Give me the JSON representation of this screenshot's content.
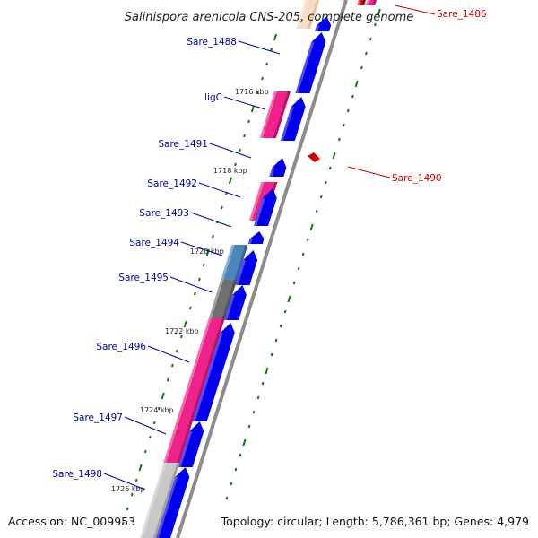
{
  "title": "Salinispora arenicola CNS-205, complete genome",
  "accession_text": "Accession: NC_009953",
  "stats_text": "Topology: circular; Length: 5,786,361 bp; Genes: 4,979",
  "colors": {
    "backbone": "#8c8c8c",
    "cds_forward": "#0000ee",
    "cds_reverse": "#dd0000",
    "rna_pink": "#ee2288",
    "cog_blue": "#4a88bb",
    "cog_gray": "#707070",
    "cog_lightgray": "#c8c8c8",
    "tick": "#0a7a0a",
    "label_forward": "#0000aa",
    "label_reverse": "#cc0000"
  },
  "kbp_labels": [
    "1716 kbp",
    "1718 kbp",
    "1720 kbp",
    "1722 kbp",
    "1724 kbp",
    "1726 kbp"
  ],
  "gene_labels": [
    {
      "name": "Sare_1486",
      "strand": "reverse"
    },
    {
      "name": "Sare_1488",
      "strand": "forward"
    },
    {
      "name": "ligC",
      "strand": "forward"
    },
    {
      "name": "Sare_1491",
      "strand": "forward"
    },
    {
      "name": "Sare_1490",
      "strand": "reverse"
    },
    {
      "name": "Sare_1492",
      "strand": "forward"
    },
    {
      "name": "Sare_1493",
      "strand": "forward"
    },
    {
      "name": "Sare_1494",
      "strand": "forward"
    },
    {
      "name": "Sare_1495",
      "strand": "forward"
    },
    {
      "name": "Sare_1496",
      "strand": "forward"
    },
    {
      "name": "Sare_1497",
      "strand": "forward"
    },
    {
      "name": "Sare_1498",
      "strand": "forward"
    }
  ]
}
